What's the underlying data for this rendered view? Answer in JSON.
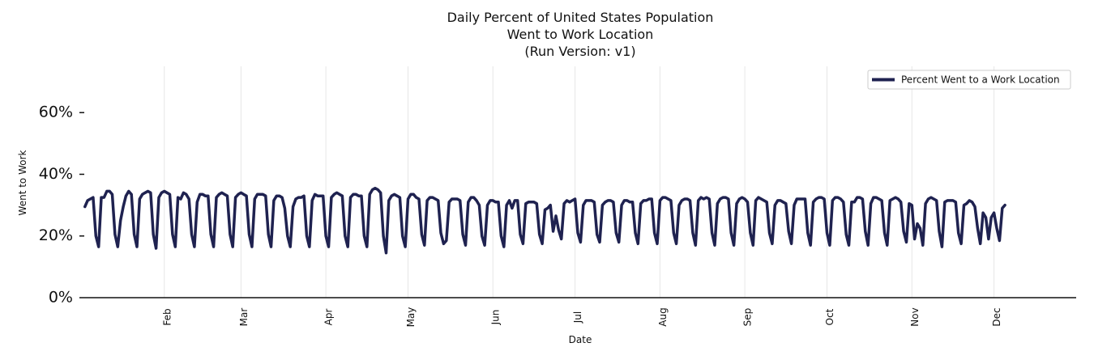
{
  "chart_data": {
    "type": "line",
    "title": [
      "Daily Percent of United States Population",
      "Went to Work Location",
      "(Run Version: v1)"
    ],
    "xlabel": "Date",
    "ylabel": "Went to Work",
    "ylim": [
      0,
      75
    ],
    "yticks": [
      0,
      20,
      40,
      60
    ],
    "ytick_labels": [
      "0%",
      "20%",
      "40%",
      "60%"
    ],
    "xlim_day": [
      0,
      364
    ],
    "xticks": [
      {
        "label": "Feb",
        "day": 31
      },
      {
        "label": "Mar",
        "day": 59
      },
      {
        "label": "Apr",
        "day": 90
      },
      {
        "label": "May",
        "day": 120
      },
      {
        "label": "Jun",
        "day": 151
      },
      {
        "label": "Jul",
        "day": 181
      },
      {
        "label": "Aug",
        "day": 212
      },
      {
        "label": "Sep",
        "day": 243
      },
      {
        "label": "Oct",
        "day": 273
      },
      {
        "label": "Nov",
        "day": 304
      },
      {
        "label": "Dec",
        "day": 334
      }
    ],
    "grid": "vertical",
    "legend": {
      "position": "top-right"
    },
    "series": [
      {
        "name": "Percent Went to a Work Location",
        "color": "#1f2250",
        "start_day": 2,
        "values": [
          29.5,
          31.5,
          32,
          32.5,
          20,
          16.5,
          32.5,
          32.5,
          34.5,
          34.5,
          33.5,
          20.5,
          16.5,
          25,
          29.5,
          33,
          34.5,
          33.5,
          20.5,
          16.5,
          32,
          33.5,
          34,
          34.5,
          34,
          20.5,
          16,
          32.5,
          34,
          34.5,
          34,
          33.5,
          20.5,
          16.5,
          32.5,
          32,
          34,
          33.5,
          32,
          20.5,
          16.5,
          31,
          33.5,
          33.5,
          33,
          33,
          20.5,
          16.5,
          32.5,
          33.5,
          34,
          33.5,
          33,
          20.5,
          16.5,
          32.5,
          33.5,
          34,
          33.5,
          33,
          20.5,
          16.5,
          32,
          33.5,
          33.5,
          33.5,
          33,
          20.5,
          16.5,
          31.5,
          33,
          33,
          32.5,
          29,
          20,
          16.5,
          29.5,
          32,
          32.5,
          32.5,
          33,
          20,
          16.5,
          31.5,
          33.5,
          33,
          33,
          33,
          20,
          16.5,
          32.5,
          33.5,
          34,
          33.5,
          33,
          20,
          16.5,
          32.5,
          33.5,
          33.5,
          33,
          33,
          20,
          16.5,
          33.5,
          35,
          35.5,
          35,
          34,
          20,
          14.5,
          31.5,
          33,
          33.5,
          33,
          32.5,
          20,
          16.5,
          32,
          33.5,
          33.5,
          32.5,
          32,
          20.5,
          17,
          31.5,
          32.5,
          32.5,
          32,
          31.5,
          21,
          17.5,
          18.5,
          31,
          32,
          32,
          32,
          31.5,
          20.5,
          17,
          31,
          32.5,
          32.5,
          31.5,
          30,
          20,
          17,
          30,
          31.5,
          31.5,
          31,
          31,
          20,
          16.5,
          30,
          31.5,
          29,
          31.5,
          31.5,
          20.5,
          17.5,
          30.5,
          31,
          31,
          31,
          30.5,
          20.5,
          17.5,
          28.5,
          29,
          30,
          21.5,
          26.5,
          22,
          19,
          30.5,
          31.5,
          31,
          31.5,
          32,
          21,
          18,
          30,
          31.5,
          31.5,
          31.5,
          31,
          20.5,
          18,
          30,
          31,
          31.5,
          31.5,
          31,
          21,
          18,
          30,
          31.5,
          31.5,
          31,
          31,
          21,
          17.5,
          30.5,
          31.5,
          31.5,
          32,
          32,
          21,
          17.5,
          31.5,
          32.5,
          32.5,
          32,
          31.5,
          21,
          17.5,
          30,
          31.5,
          32,
          32,
          31.5,
          21,
          17,
          31.5,
          32.5,
          32,
          32.5,
          32,
          21,
          17,
          30.5,
          32,
          32.5,
          32.5,
          32,
          21,
          17,
          30.5,
          32,
          32.5,
          32,
          31,
          21,
          17,
          31.5,
          32.5,
          32,
          31.5,
          31,
          21,
          17.5,
          30,
          31.5,
          31.5,
          31,
          30.5,
          21.5,
          17.5,
          30,
          32,
          32,
          32,
          32,
          21,
          17,
          31,
          32,
          32.5,
          32.5,
          32,
          21,
          17,
          31.5,
          32.5,
          32.5,
          32,
          31,
          20.5,
          17,
          31,
          31,
          32.5,
          32.5,
          32,
          21.5,
          17,
          30.5,
          32.5,
          32.5,
          32,
          31.5,
          21,
          17,
          31.5,
          32,
          32.5,
          32,
          31,
          21.5,
          18,
          30.5,
          30,
          19,
          24,
          22.5,
          17,
          30.5,
          32,
          32.5,
          32,
          31.5,
          21.5,
          16.5,
          31,
          31.5,
          31.5,
          31.5,
          31,
          21,
          17.5,
          30,
          30.5,
          31.5,
          31,
          29.5,
          22.5,
          17.5,
          27.5,
          26,
          19,
          26,
          27.5,
          22.5,
          18.5,
          29,
          30
        ]
      }
    ]
  }
}
